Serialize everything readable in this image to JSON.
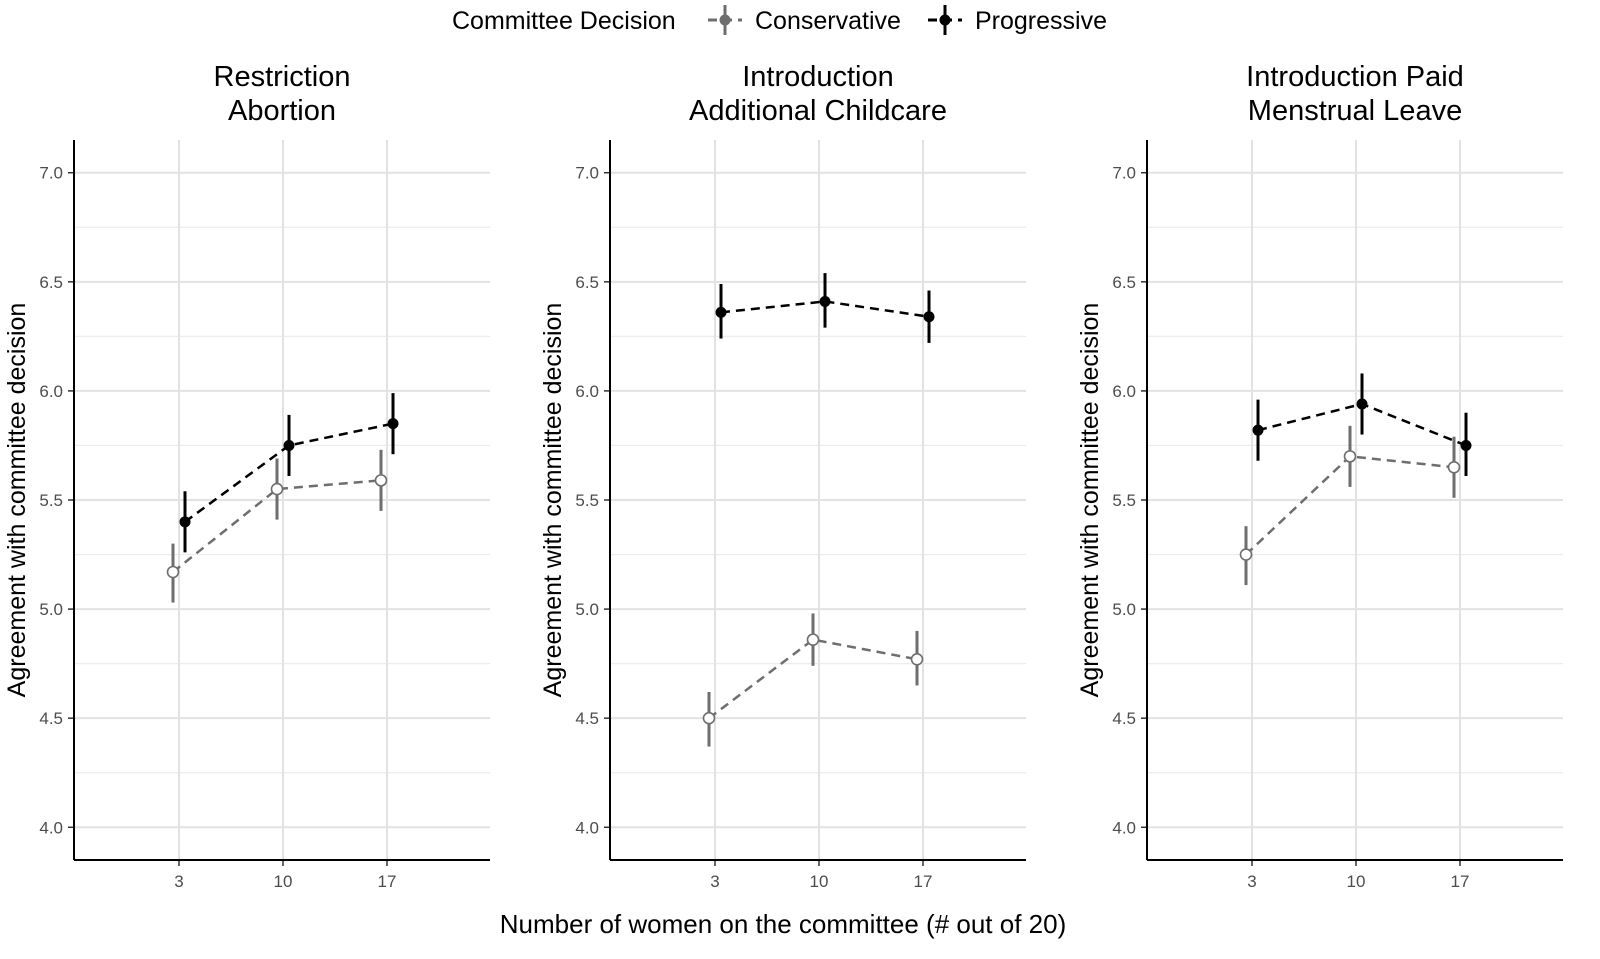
{
  "legend": {
    "title": "Committee Decision",
    "entries": [
      {
        "name": "Conservative",
        "color": "#6e6e6e",
        "marker": "open-circle",
        "linestyle": "dashed"
      },
      {
        "name": "Progressive",
        "color": "#000000",
        "marker": "filled-circle",
        "linestyle": "dashed"
      }
    ],
    "placement": "top-center"
  },
  "xlabel": "Number of women on the committee (# out of 20)",
  "chart_data": [
    {
      "type": "line",
      "title": "Restriction\nAbortion",
      "xlabel": "Number of women on the committee (# out of 20)",
      "ylabel": "Agreement with committee decision",
      "categories": [
        "3",
        "10",
        "17"
      ],
      "ylim": [
        4.0,
        7.0
      ],
      "yticks": [
        "4.0",
        "4.5",
        "5.0",
        "5.5",
        "6.0",
        "6.5",
        "7.0"
      ],
      "grid": true,
      "series": [
        {
          "name": "Conservative",
          "values": [
            5.17,
            5.55,
            5.59
          ],
          "lower": [
            5.03,
            5.41,
            5.45
          ],
          "upper": [
            5.3,
            5.69,
            5.73
          ]
        },
        {
          "name": "Progressive",
          "values": [
            5.4,
            5.75,
            5.85
          ],
          "lower": [
            5.26,
            5.61,
            5.71
          ],
          "upper": [
            5.54,
            5.89,
            5.99
          ]
        }
      ]
    },
    {
      "type": "line",
      "title": "Introduction\nAdditional Childcare",
      "xlabel": "Number of women on the committee (# out of 20)",
      "ylabel": "Agreement with committee decision",
      "categories": [
        "3",
        "10",
        "17"
      ],
      "ylim": [
        4.0,
        7.0
      ],
      "yticks": [
        "4.0",
        "4.5",
        "5.0",
        "5.5",
        "6.0",
        "6.5",
        "7.0"
      ],
      "grid": true,
      "series": [
        {
          "name": "Conservative",
          "values": [
            4.5,
            4.86,
            4.77
          ],
          "lower": [
            4.37,
            4.74,
            4.65
          ],
          "upper": [
            4.62,
            4.98,
            4.9
          ]
        },
        {
          "name": "Progressive",
          "values": [
            6.36,
            6.41,
            6.34
          ],
          "lower": [
            6.24,
            6.29,
            6.22
          ],
          "upper": [
            6.49,
            6.54,
            6.46
          ]
        }
      ]
    },
    {
      "type": "line",
      "title": "Introduction Paid\nMenstrual Leave",
      "xlabel": "Number of women on the committee (# out of 20)",
      "ylabel": "Agreement with committee decision",
      "categories": [
        "3",
        "10",
        "17"
      ],
      "ylim": [
        4.0,
        7.0
      ],
      "yticks": [
        "4.0",
        "4.5",
        "5.0",
        "5.5",
        "6.0",
        "6.5",
        "7.0"
      ],
      "grid": true,
      "series": [
        {
          "name": "Conservative",
          "values": [
            5.25,
            5.7,
            5.65
          ],
          "lower": [
            5.11,
            5.56,
            5.51
          ],
          "upper": [
            5.38,
            5.84,
            5.79
          ]
        },
        {
          "name": "Progressive",
          "values": [
            5.82,
            5.94,
            5.75
          ],
          "lower": [
            5.68,
            5.8,
            5.61
          ],
          "upper": [
            5.96,
            6.08,
            5.9
          ]
        }
      ]
    }
  ]
}
